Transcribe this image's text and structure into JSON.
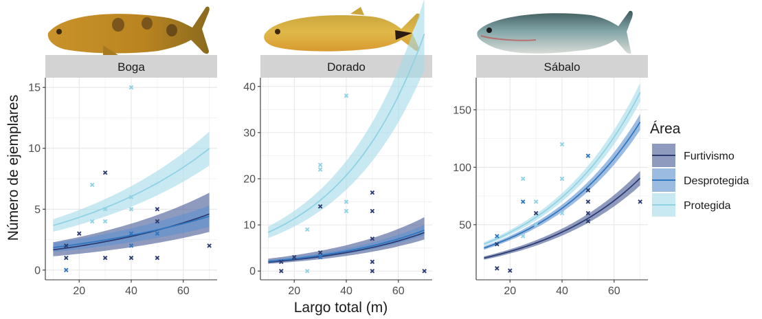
{
  "chart_data": {
    "type": "scatter",
    "xlabel": "Largo total (m)",
    "ylabel": "Número de ejemplares",
    "legend": {
      "title": "Área",
      "placement": "right",
      "entries": [
        {
          "name": "Furtivismo",
          "line_color": "#2c3c73",
          "fill_color": "#4a5d96"
        },
        {
          "name": "Desprotegida",
          "line_color": "#2f77c0",
          "fill_color": "#5f91cf"
        },
        {
          "name": "Protegida",
          "line_color": "#8fd2e4",
          "fill_color": "#a8dcea"
        }
      ]
    },
    "grid": true,
    "panels": [
      {
        "title": "Boga",
        "image": "boga-fish",
        "xlim": [
          7,
          73
        ],
        "ylim": [
          -0.8,
          15.8
        ],
        "xticks": [
          20,
          40,
          60
        ],
        "yticks": [
          0,
          5,
          10,
          15
        ],
        "series": [
          {
            "name": "Furtivismo",
            "fit": {
              "a": 1.4,
              "b": 0.017
            },
            "ci_low": 0.68,
            "ci_high": 1.38,
            "points": [
              [
                15,
                2
              ],
              [
                15,
                1
              ],
              [
                20,
                3
              ],
              [
                30,
                8
              ],
              [
                30,
                1
              ],
              [
                40,
                1
              ],
              [
                50,
                5
              ],
              [
                50,
                4
              ],
              [
                50,
                1
              ],
              [
                70,
                2
              ]
            ]
          },
          {
            "name": "Desprotegida",
            "fit": {
              "a": 1.6,
              "b": 0.0145
            },
            "ci_low": 0.8,
            "ci_high": 1.2,
            "points": [
              [
                15,
                0
              ],
              [
                40,
                2
              ],
              [
                40,
                3
              ],
              [
                50,
                3
              ]
            ]
          },
          {
            "name": "Protegida",
            "fit": {
              "a": 3.1,
              "b": 0.0167
            },
            "ci_low": 0.86,
            "ci_high": 1.14,
            "points": [
              [
                25,
                7
              ],
              [
                25,
                4
              ],
              [
                30,
                5
              ],
              [
                30,
                4
              ],
              [
                40,
                15
              ],
              [
                40,
                6
              ],
              [
                40,
                5
              ]
            ]
          }
        ]
      },
      {
        "title": "Dorado",
        "image": "dorado-fish",
        "xlim": [
          7,
          73
        ],
        "ylim": [
          -1.9,
          41.9
        ],
        "xticks": [
          20,
          40,
          60
        ],
        "yticks": [
          0,
          10,
          20,
          30,
          40
        ],
        "series": [
          {
            "name": "Furtivismo",
            "fit": {
              "a": 1.5,
              "b": 0.0245
            },
            "ci_low": 0.82,
            "ci_high": 1.4,
            "points": [
              [
                15,
                2
              ],
              [
                15,
                0
              ],
              [
                20,
                3
              ],
              [
                30,
                14
              ],
              [
                30,
                4
              ],
              [
                50,
                17
              ],
              [
                50,
                13
              ],
              [
                50,
                7
              ],
              [
                50,
                2
              ],
              [
                50,
                0
              ],
              [
                70,
                0
              ]
            ]
          },
          {
            "name": "Desprotegida",
            "fit": {
              "a": 1.65,
              "b": 0.024
            },
            "ci_low": 0.87,
            "ci_high": 1.13,
            "points": [
              [
                30,
                3
              ]
            ]
          },
          {
            "name": "Protegida",
            "fit": {
              "a": 6.2,
              "b": 0.0302
            },
            "ci_low": 0.85,
            "ci_high": 1.15,
            "points": [
              [
                25,
                9
              ],
              [
                25,
                0
              ],
              [
                30,
                23
              ],
              [
                30,
                22
              ],
              [
                40,
                38
              ],
              [
                40,
                15
              ],
              [
                40,
                13
              ]
            ]
          }
        ]
      },
      {
        "title": "Sábalo",
        "image": "sabalo-fish",
        "xlim": [
          7,
          73
        ],
        "ylim": [
          2,
          178
        ],
        "xticks": [
          20,
          40,
          60
        ],
        "yticks": [
          50,
          100,
          150
        ],
        "series": [
          {
            "name": "Furtivismo",
            "fit": {
              "a": 16.4,
              "b": 0.0244
            },
            "ci_low": 0.93,
            "ci_high": 1.07,
            "points": [
              [
                15,
                12
              ],
              [
                15,
                33
              ],
              [
                20,
                10
              ],
              [
                30,
                60
              ],
              [
                50,
                80
              ],
              [
                50,
                70
              ],
              [
                50,
                60
              ],
              [
                50,
                53
              ],
              [
                70,
                70
              ]
            ]
          },
          {
            "name": "Desprotegida",
            "fit": {
              "a": 22.9,
              "b": 0.0258
            },
            "ci_low": 0.95,
            "ci_high": 1.05,
            "points": [
              [
                15,
                40
              ],
              [
                25,
                70
              ],
              [
                50,
                110
              ]
            ]
          },
          {
            "name": "Protegida",
            "fit": {
              "a": 25.3,
              "b": 0.0268
            },
            "ci_low": 0.95,
            "ci_high": 1.05,
            "points": [
              [
                25,
                90
              ],
              [
                25,
                40
              ],
              [
                30,
                70
              ],
              [
                30,
                50
              ],
              [
                40,
                120
              ],
              [
                40,
                90
              ],
              [
                40,
                60
              ]
            ]
          }
        ]
      }
    ]
  }
}
